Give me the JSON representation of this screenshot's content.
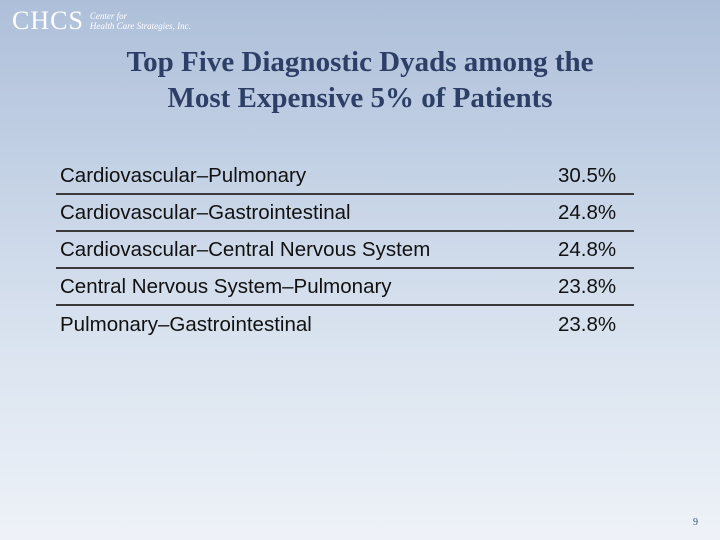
{
  "logo": {
    "mark": "CHCS",
    "line1": "Center for",
    "line2": "Health Care Strategies, Inc."
  },
  "title": {
    "line1": "Top Five Diagnostic Dyads among the",
    "line2": "Most Expensive 5% of Patients"
  },
  "rows": [
    {
      "label": "Cardiovascular–Pulmonary",
      "value": "30.5%"
    },
    {
      "label": "Cardiovascular–Gastrointestinal",
      "value": "24.8%"
    },
    {
      "label": "Cardiovascular–Central Nervous System",
      "value": "24.8%"
    },
    {
      "label": "Central Nervous System–Pulmonary",
      "value": "23.8%"
    },
    {
      "label": "Pulmonary–Gastrointestinal",
      "value": "23.8%"
    }
  ],
  "page_number": "9"
}
